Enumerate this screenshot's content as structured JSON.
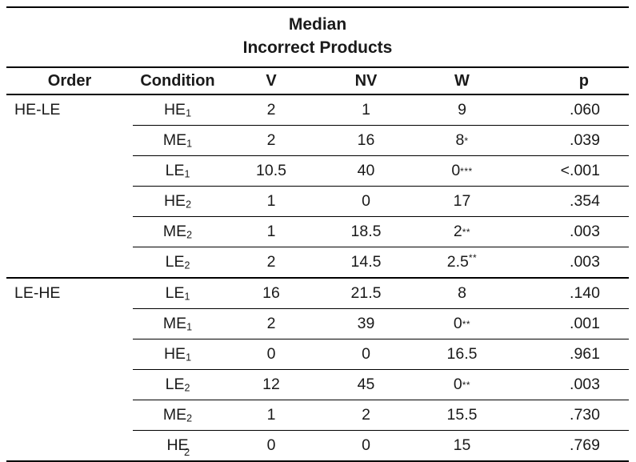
{
  "table": {
    "title_line1": "Median",
    "title_line2": "Incorrect Products",
    "columns": [
      "Order",
      "Condition",
      "V",
      "NV",
      "W",
      "p"
    ],
    "sections": [
      {
        "order": "HE-LE",
        "rows": [
          {
            "condition": "HE",
            "sub": "1",
            "v": "2",
            "nv": "1",
            "w": "9",
            "stars": "",
            "star_pos": "mid",
            "p": ".060"
          },
          {
            "condition": "ME",
            "sub": "1",
            "v": "2",
            "nv": "16",
            "w": "8",
            "stars": "*",
            "star_pos": "mid",
            "p": ".039"
          },
          {
            "condition": "LE",
            "sub": "1",
            "v": "10.5",
            "nv": "40",
            "w": "0",
            "stars": "***",
            "star_pos": "mid",
            "p": "<.001"
          },
          {
            "condition": "HE",
            "sub": "2",
            "v": "1",
            "nv": "0",
            "w": "17",
            "stars": "",
            "star_pos": "mid",
            "p": ".354"
          },
          {
            "condition": "ME",
            "sub": "2",
            "v": "1",
            "nv": "18.5",
            "w": "2",
            "stars": "**",
            "star_pos": "mid",
            "p": ".003"
          },
          {
            "condition": "LE",
            "sub": "2",
            "v": "2",
            "nv": "14.5",
            "w": "2.5",
            "stars": "**",
            "star_pos": "sup",
            "p": ".003"
          }
        ]
      },
      {
        "order": "LE-HE",
        "rows": [
          {
            "condition": "LE",
            "sub": "1",
            "v": "16",
            "nv": "21.5",
            "w": "8",
            "stars": "",
            "star_pos": "mid",
            "p": ".140"
          },
          {
            "condition": "ME",
            "sub": "1",
            "v": "2",
            "nv": "39",
            "w": "0",
            "stars": "**",
            "star_pos": "mid",
            "p": ".001"
          },
          {
            "condition": "HE",
            "sub": "1",
            "v": "0",
            "nv": "0",
            "w": "16.5",
            "stars": "",
            "star_pos": "mid",
            "p": ".961"
          },
          {
            "condition": "LE",
            "sub": "2",
            "v": "12",
            "nv": "45",
            "w": "0",
            "stars": "**",
            "star_pos": "mid",
            "p": ".003"
          },
          {
            "condition": "ME",
            "sub": "2",
            "v": "1",
            "nv": "2",
            "w": "15.5",
            "stars": "",
            "star_pos": "mid",
            "p": ".730"
          },
          {
            "condition": "HE",
            "sub": "",
            "v": "0",
            "nv": "0",
            "w": "15",
            "stars": "",
            "star_pos": "mid",
            "p": ".769"
          }
        ]
      }
    ],
    "clipped_fragment": "2"
  }
}
